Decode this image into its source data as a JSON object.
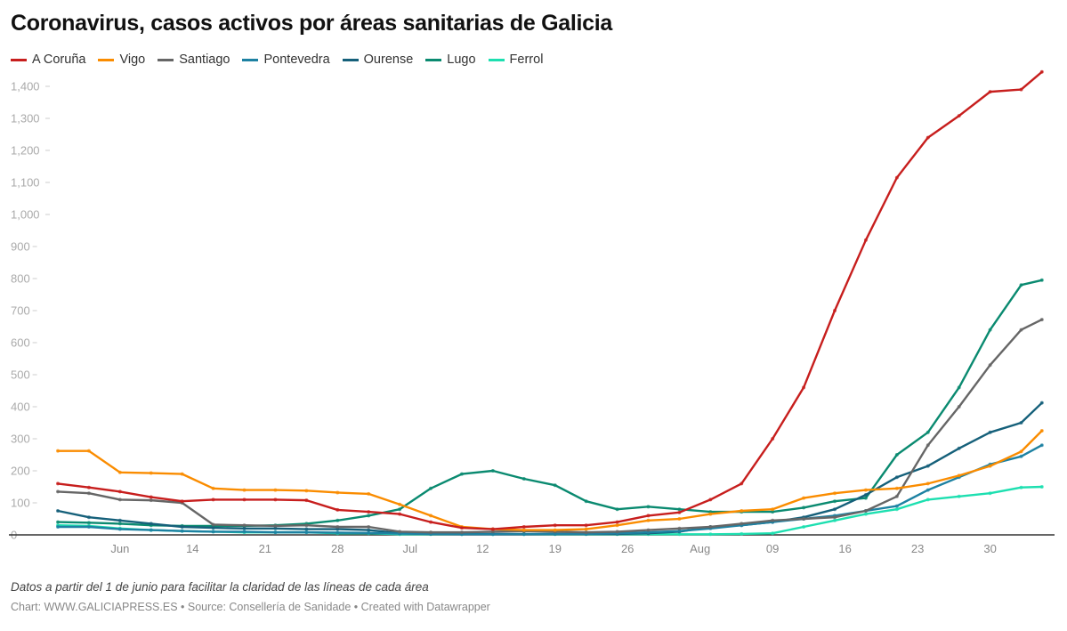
{
  "title": "Coronavirus, casos activos por áreas sanitarias de Galicia",
  "note": "Datos a partir del 1 de junio para facilitar la claridad de las líneas de cada área",
  "credit": "Chart: WWW.GALICIAPRESS.ES • Source: Consellería de Sanidade • Created with Datawrapper",
  "chart_data": {
    "type": "line",
    "title": "Coronavirus, casos activos por áreas sanitarias de Galicia",
    "xlabel": "",
    "ylabel": "",
    "ylim": [
      0,
      1450
    ],
    "grid": false,
    "legend_placement": "top-left",
    "yticks": [
      "0",
      "100",
      "200",
      "300",
      "400",
      "500",
      "600",
      "700",
      "800",
      "900",
      "1,000",
      "1,100",
      "1,200",
      "1,300",
      "1,400"
    ],
    "xticks": [
      {
        "label": "Jun",
        "date": "Jun 07"
      },
      {
        "label": "14",
        "date": "Jun 14"
      },
      {
        "label": "21",
        "date": "Jun 21"
      },
      {
        "label": "28",
        "date": "Jun 28"
      },
      {
        "label": "Jul",
        "date": "Jul 05"
      },
      {
        "label": "12",
        "date": "Jul 12"
      },
      {
        "label": "19",
        "date": "Jul 19"
      },
      {
        "label": "26",
        "date": "Jul 26"
      },
      {
        "label": "Aug",
        "date": "Aug 02"
      },
      {
        "label": "09",
        "date": "Aug 09"
      },
      {
        "label": "16",
        "date": "Aug 16"
      },
      {
        "label": "23",
        "date": "Aug 23"
      },
      {
        "label": "30",
        "date": "Aug 30"
      }
    ],
    "x": [
      "Jun 01",
      "Jun 04",
      "Jun 07",
      "Jun 10",
      "Jun 13",
      "Jun 16",
      "Jun 19",
      "Jun 22",
      "Jun 25",
      "Jun 28",
      "Jul 01",
      "Jul 04",
      "Jul 07",
      "Jul 10",
      "Jul 13",
      "Jul 16",
      "Jul 19",
      "Jul 22",
      "Jul 25",
      "Jul 28",
      "Jul 31",
      "Aug 03",
      "Aug 06",
      "Aug 09",
      "Aug 12",
      "Aug 15",
      "Aug 18",
      "Aug 21",
      "Aug 24",
      "Aug 27",
      "Aug 30",
      "Sep 02",
      "Sep 04"
    ],
    "series": [
      {
        "name": "A Coruña",
        "color": "#c71e1d",
        "values": [
          160,
          148,
          135,
          118,
          105,
          110,
          110,
          110,
          108,
          78,
          72,
          65,
          40,
          22,
          18,
          25,
          30,
          30,
          40,
          60,
          70,
          110,
          160,
          300,
          460,
          700,
          920,
          1115,
          1240,
          1308,
          1383,
          1390,
          1445
        ]
      },
      {
        "name": "Vigo",
        "color": "#fa8c00",
        "values": [
          262,
          262,
          195,
          193,
          190,
          145,
          140,
          140,
          138,
          132,
          128,
          95,
          60,
          25,
          18,
          15,
          15,
          18,
          30,
          45,
          50,
          65,
          75,
          80,
          115,
          130,
          140,
          145,
          160,
          185,
          215,
          260,
          325
        ]
      },
      {
        "name": "Santiago",
        "color": "#666666",
        "values": [
          135,
          130,
          110,
          108,
          100,
          32,
          30,
          28,
          30,
          25,
          25,
          10,
          8,
          8,
          10,
          12,
          10,
          8,
          10,
          15,
          20,
          25,
          35,
          45,
          50,
          55,
          75,
          120,
          280,
          400,
          530,
          640,
          672
        ]
      },
      {
        "name": "Pontevedra",
        "color": "#1d81a2",
        "values": [
          25,
          25,
          18,
          15,
          12,
          10,
          10,
          8,
          8,
          7,
          6,
          4,
          3,
          2,
          2,
          2,
          3,
          3,
          5,
          8,
          12,
          20,
          30,
          40,
          50,
          60,
          75,
          90,
          140,
          180,
          220,
          245,
          280
        ]
      },
      {
        "name": "Ourense",
        "color": "#15607a",
        "values": [
          75,
          55,
          45,
          35,
          25,
          22,
          20,
          20,
          18,
          18,
          15,
          5,
          3,
          3,
          3,
          3,
          3,
          3,
          3,
          5,
          10,
          25,
          30,
          40,
          55,
          80,
          125,
          180,
          215,
          270,
          320,
          350,
          412
        ]
      },
      {
        "name": "Lugo",
        "color": "#0a8a70",
        "values": [
          40,
          38,
          35,
          30,
          28,
          28,
          28,
          30,
          35,
          45,
          60,
          80,
          145,
          190,
          200,
          175,
          155,
          105,
          80,
          88,
          80,
          72,
          72,
          72,
          85,
          105,
          115,
          250,
          320,
          460,
          640,
          780,
          795
        ]
      },
      {
        "name": "Ferrol",
        "color": "#1ddfb0",
        "values": [
          30,
          28,
          20,
          15,
          12,
          10,
          8,
          8,
          8,
          5,
          5,
          2,
          2,
          2,
          2,
          2,
          2,
          2,
          2,
          2,
          2,
          2,
          3,
          5,
          25,
          45,
          65,
          80,
          110,
          120,
          130,
          148,
          150
        ]
      }
    ]
  }
}
